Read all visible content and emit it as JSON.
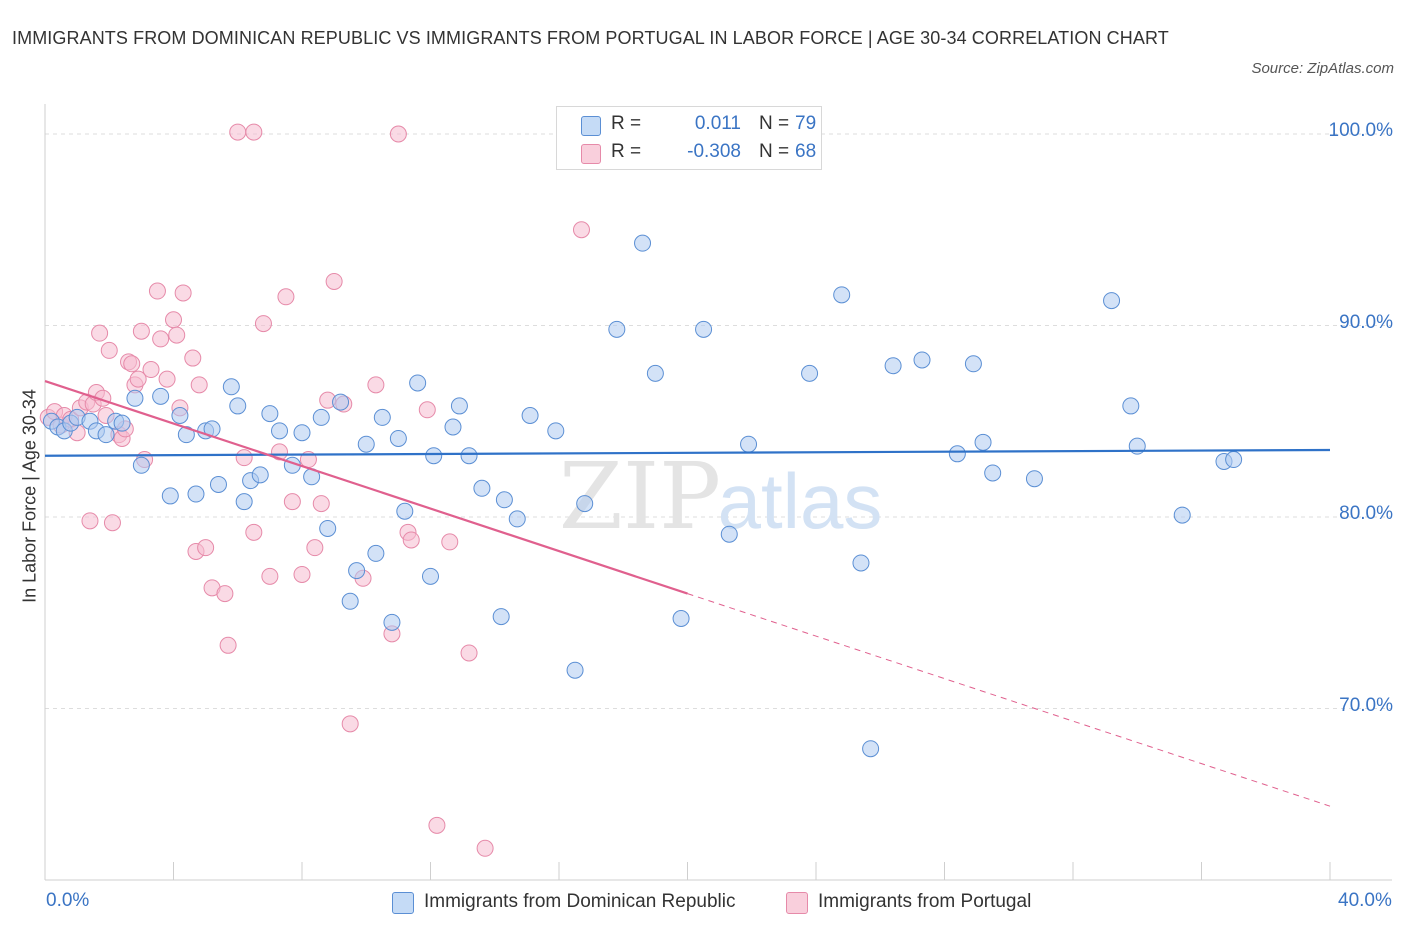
{
  "header": {
    "title": "IMMIGRANTS FROM DOMINICAN REPUBLIC VS IMMIGRANTS FROM PORTUGAL IN LABOR FORCE | AGE 30-34 CORRELATION CHART",
    "source": "Source: ZipAtlas.com"
  },
  "watermark": {
    "zip": "ZIP",
    "atlas": "atlas"
  },
  "legend_top": {
    "r_label": "R =",
    "n_label": "N =",
    "rows": [
      {
        "r": "0.011",
        "n": "79"
      },
      {
        "r": "-0.308",
        "n": "68"
      }
    ]
  },
  "colors": {
    "blue_fill": "#aecbf1",
    "blue_stroke": "#5b8fd4",
    "blue_line": "#2f72c8",
    "pink_fill": "#f6bcd0",
    "pink_stroke": "#e68aa9",
    "pink_line": "#e0608e",
    "accent_text": "#3a74c4",
    "grid": "#dddddd"
  },
  "chart_data": {
    "type": "scatter",
    "title": "IMMIGRANTS FROM DOMINICAN REPUBLIC VS IMMIGRANTS FROM PORTUGAL IN LABOR FORCE | AGE 30-34 CORRELATION CHART",
    "xlabel": "",
    "ylabel": "In Labor Force | Age 30-34",
    "xlim": [
      0,
      40
    ],
    "ylim": [
      60.5,
      102.5
    ],
    "x_tick_labels": [
      "0.0%",
      "40.0%"
    ],
    "y_ticks": [
      {
        "value": 70,
        "label": "70.0%"
      },
      {
        "value": 80,
        "label": "80.0%"
      },
      {
        "value": 90,
        "label": "90.0%"
      },
      {
        "value": 100,
        "label": "100.0%"
      }
    ],
    "grid": true,
    "legend": "top-center",
    "series": [
      {
        "name": "Immigrants from Dominican Republic",
        "color": "#aecbf1",
        "R": 0.011,
        "N": 79,
        "trend": {
          "x0": 0,
          "y0": 83.2,
          "x1": 40,
          "y1": 83.5
        },
        "points": [
          [
            0.2,
            85.0
          ],
          [
            0.4,
            84.7
          ],
          [
            0.6,
            84.5
          ],
          [
            0.8,
            84.9
          ],
          [
            1.0,
            85.2
          ],
          [
            1.4,
            85.0
          ],
          [
            1.6,
            84.5
          ],
          [
            1.9,
            84.3
          ],
          [
            2.2,
            85.0
          ],
          [
            2.4,
            84.9
          ],
          [
            2.8,
            86.2
          ],
          [
            3.0,
            82.7
          ],
          [
            3.6,
            86.3
          ],
          [
            3.9,
            81.1
          ],
          [
            4.2,
            85.3
          ],
          [
            4.4,
            84.3
          ],
          [
            4.7,
            81.2
          ],
          [
            5.0,
            84.5
          ],
          [
            5.2,
            84.6
          ],
          [
            5.4,
            81.7
          ],
          [
            5.8,
            86.8
          ],
          [
            6.0,
            85.8
          ],
          [
            6.2,
            80.8
          ],
          [
            6.4,
            81.9
          ],
          [
            6.7,
            82.2
          ],
          [
            7.0,
            85.4
          ],
          [
            7.3,
            84.5
          ],
          [
            7.7,
            82.7
          ],
          [
            8.0,
            84.4
          ],
          [
            8.3,
            82.1
          ],
          [
            8.6,
            85.2
          ],
          [
            8.8,
            79.4
          ],
          [
            9.2,
            86.0
          ],
          [
            9.5,
            75.6
          ],
          [
            9.7,
            77.2
          ],
          [
            10.0,
            83.8
          ],
          [
            10.3,
            78.1
          ],
          [
            10.5,
            85.2
          ],
          [
            10.8,
            74.5
          ],
          [
            11.0,
            84.1
          ],
          [
            11.2,
            80.3
          ],
          [
            11.6,
            87.0
          ],
          [
            12.0,
            76.9
          ],
          [
            12.1,
            83.2
          ],
          [
            12.7,
            84.7
          ],
          [
            12.9,
            85.8
          ],
          [
            13.2,
            83.2
          ],
          [
            13.6,
            81.5
          ],
          [
            14.2,
            74.8
          ],
          [
            14.3,
            80.9
          ],
          [
            14.7,
            79.9
          ],
          [
            15.1,
            85.3
          ],
          [
            15.9,
            84.5
          ],
          [
            16.5,
            72.0
          ],
          [
            16.8,
            80.7
          ],
          [
            17.8,
            89.8
          ],
          [
            18.6,
            94.3
          ],
          [
            19.0,
            87.5
          ],
          [
            19.8,
            74.7
          ],
          [
            20.5,
            89.8
          ],
          [
            21.3,
            79.1
          ],
          [
            21.9,
            83.8
          ],
          [
            23.8,
            87.5
          ],
          [
            24.8,
            91.6
          ],
          [
            25.4,
            77.6
          ],
          [
            25.7,
            67.9
          ],
          [
            26.4,
            87.9
          ],
          [
            27.3,
            88.2
          ],
          [
            28.4,
            83.3
          ],
          [
            28.9,
            88.0
          ],
          [
            29.2,
            83.9
          ],
          [
            29.5,
            82.3
          ],
          [
            30.8,
            82.0
          ],
          [
            33.2,
            91.3
          ],
          [
            33.8,
            85.8
          ],
          [
            34.0,
            83.7
          ],
          [
            35.4,
            80.1
          ],
          [
            36.7,
            82.9
          ],
          [
            37.0,
            83.0
          ]
        ]
      },
      {
        "name": "Immigrants from Portugal",
        "color": "#f6bcd0",
        "R": -0.308,
        "N": 68,
        "trend": {
          "x0": 0,
          "y0": 87.1,
          "x1": 20,
          "y1": 76.0,
          "dash_x1": 40,
          "dash_y1": 64.9
        },
        "points": [
          [
            0.1,
            85.2
          ],
          [
            0.3,
            85.5
          ],
          [
            0.5,
            84.8
          ],
          [
            0.6,
            85.3
          ],
          [
            0.8,
            85.1
          ],
          [
            1.0,
            84.4
          ],
          [
            1.1,
            85.7
          ],
          [
            1.3,
            86.0
          ],
          [
            1.4,
            79.8
          ],
          [
            1.5,
            85.9
          ],
          [
            1.6,
            86.5
          ],
          [
            1.7,
            89.6
          ],
          [
            1.8,
            86.2
          ],
          [
            1.9,
            85.3
          ],
          [
            2.0,
            88.7
          ],
          [
            2.1,
            79.7
          ],
          [
            2.3,
            84.3
          ],
          [
            2.4,
            84.1
          ],
          [
            2.5,
            84.6
          ],
          [
            2.6,
            88.1
          ],
          [
            2.7,
            88.0
          ],
          [
            2.8,
            86.9
          ],
          [
            2.9,
            87.2
          ],
          [
            3.0,
            89.7
          ],
          [
            3.1,
            83.0
          ],
          [
            3.3,
            87.7
          ],
          [
            3.5,
            91.8
          ],
          [
            3.6,
            89.3
          ],
          [
            3.8,
            87.2
          ],
          [
            4.0,
            90.3
          ],
          [
            4.1,
            89.5
          ],
          [
            4.2,
            85.7
          ],
          [
            4.3,
            91.7
          ],
          [
            4.6,
            88.3
          ],
          [
            4.7,
            78.2
          ],
          [
            4.8,
            86.9
          ],
          [
            5.0,
            78.4
          ],
          [
            5.2,
            76.3
          ],
          [
            5.6,
            76.0
          ],
          [
            5.7,
            73.3
          ],
          [
            6.2,
            83.1
          ],
          [
            6.5,
            79.2
          ],
          [
            6.8,
            90.1
          ],
          [
            7.0,
            76.9
          ],
          [
            7.3,
            83.4
          ],
          [
            7.5,
            91.5
          ],
          [
            7.7,
            80.8
          ],
          [
            8.0,
            77.0
          ],
          [
            8.2,
            83.0
          ],
          [
            8.4,
            78.4
          ],
          [
            8.6,
            80.7
          ],
          [
            8.8,
            86.1
          ],
          [
            9.0,
            92.3
          ],
          [
            9.3,
            85.9
          ],
          [
            9.5,
            69.2
          ],
          [
            9.9,
            76.8
          ],
          [
            10.3,
            86.9
          ],
          [
            10.8,
            73.9
          ],
          [
            11.3,
            79.2
          ],
          [
            11.4,
            78.8
          ],
          [
            11.9,
            85.6
          ],
          [
            12.2,
            63.9
          ],
          [
            12.6,
            78.7
          ],
          [
            13.2,
            72.9
          ],
          [
            13.7,
            62.7
          ],
          [
            6.0,
            100.1
          ],
          [
            6.5,
            100.1
          ],
          [
            11.0,
            100.0
          ],
          [
            16.7,
            95.0
          ]
        ]
      }
    ]
  },
  "legend_bottom": {
    "items": [
      {
        "label": "Immigrants from Dominican Republic"
      },
      {
        "label": "Immigrants from Portugal"
      }
    ]
  }
}
